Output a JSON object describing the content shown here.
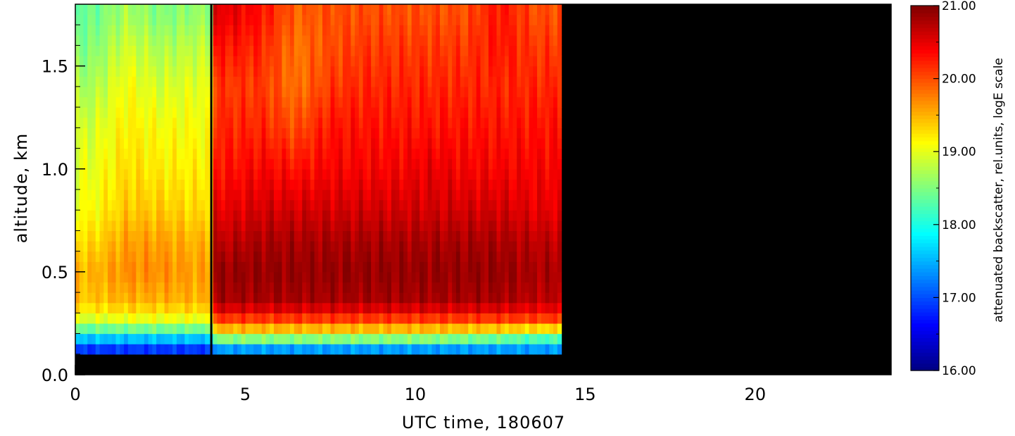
{
  "chart_data": [
    {
      "type": "heatmap",
      "title": "",
      "xlabel": "UTC time, 180607",
      "ylabel": "altitude, km",
      "xlim": [
        0,
        24
      ],
      "ylim": [
        0,
        1.8
      ],
      "x_ticks": [
        "0",
        "5",
        "10",
        "15",
        "20"
      ],
      "y_ticks": [
        "0.0",
        "0.5",
        "1.0",
        "1.5"
      ],
      "x_tick_values": [
        0,
        5,
        10,
        15,
        20
      ],
      "y_tick_values": [
        0.0,
        0.5,
        1.0,
        1.5
      ],
      "data_extent_hours": [
        0,
        14.3
      ],
      "instrument_gap_hour": 4.0,
      "no_data_below_km": 0.1,
      "no_data_color": "#000000",
      "profiles": [
        {
          "time": 0.5,
          "values": [
            16.9,
            17.8,
            18.8,
            19.4,
            19.5,
            19.3,
            19.1,
            19.0,
            18.9,
            18.7,
            18.5,
            18.4
          ]
        },
        {
          "time": 1.5,
          "values": [
            16.9,
            17.8,
            18.9,
            19.5,
            19.7,
            19.6,
            19.4,
            19.3,
            19.2,
            19.1,
            18.9,
            18.7
          ]
        },
        {
          "time": 2.5,
          "values": [
            16.9,
            17.8,
            18.9,
            19.5,
            19.7,
            19.6,
            19.4,
            19.2,
            19.1,
            18.9,
            18.7,
            18.5
          ]
        },
        {
          "time": 3.5,
          "values": [
            16.9,
            17.8,
            18.9,
            19.5,
            19.6,
            19.5,
            19.3,
            19.2,
            19.1,
            19.0,
            18.8,
            18.6
          ]
        },
        {
          "time": 4.5,
          "values": [
            17.4,
            18.9,
            19.9,
            20.8,
            20.9,
            20.7,
            20.5,
            20.3,
            20.2,
            20.1,
            20.3,
            20.5
          ]
        },
        {
          "time": 5.5,
          "values": [
            17.4,
            18.9,
            19.9,
            20.8,
            20.9,
            20.8,
            20.6,
            20.4,
            20.2,
            20.1,
            20.2,
            20.3
          ]
        },
        {
          "time": 6.5,
          "values": [
            17.4,
            18.9,
            19.9,
            20.8,
            20.9,
            20.8,
            20.6,
            20.3,
            20.0,
            19.8,
            19.8,
            19.9
          ]
        },
        {
          "time": 7.5,
          "values": [
            17.4,
            18.9,
            19.9,
            20.8,
            20.9,
            20.8,
            20.6,
            20.4,
            20.3,
            20.1,
            20.0,
            20.0
          ]
        },
        {
          "time": 8.5,
          "values": [
            17.4,
            18.9,
            19.9,
            20.8,
            20.9,
            20.8,
            20.6,
            20.4,
            20.3,
            20.2,
            20.1,
            20.0
          ]
        },
        {
          "time": 9.5,
          "values": [
            17.4,
            18.9,
            19.9,
            20.8,
            20.9,
            20.8,
            20.6,
            20.4,
            20.3,
            20.2,
            20.1,
            20.0
          ]
        },
        {
          "time": 10.5,
          "values": [
            17.4,
            18.9,
            19.9,
            20.8,
            20.9,
            20.8,
            20.6,
            20.5,
            20.3,
            20.2,
            20.1,
            20.0
          ]
        },
        {
          "time": 11.5,
          "values": [
            17.4,
            18.8,
            19.9,
            20.8,
            20.9,
            20.8,
            20.6,
            20.4,
            20.3,
            20.2,
            20.1,
            20.0
          ]
        },
        {
          "time": 12.5,
          "values": [
            17.4,
            18.7,
            19.9,
            20.8,
            20.9,
            20.8,
            20.6,
            20.4,
            20.3,
            20.2,
            20.3,
            20.3
          ]
        },
        {
          "time": 13.5,
          "values": [
            17.4,
            18.5,
            19.9,
            20.7,
            20.8,
            20.7,
            20.5,
            20.4,
            20.3,
            20.2,
            20.1,
            20.0
          ]
        }
      ],
      "profile_altitudes_km": [
        0.13,
        0.19,
        0.25,
        0.35,
        0.5,
        0.65,
        0.8,
        1.0,
        1.2,
        1.4,
        1.6,
        1.75
      ],
      "colorbar": {
        "label": "attenuated backscatter, rel.units, logE scale",
        "range": [
          16.0,
          21.0
        ],
        "tick_labels": [
          "16.00",
          "17.00",
          "18.00",
          "19.00",
          "20.00",
          "21.00"
        ],
        "tick_values": [
          16,
          17,
          18,
          19,
          20,
          21
        ],
        "colormap": "jet"
      }
    }
  ]
}
